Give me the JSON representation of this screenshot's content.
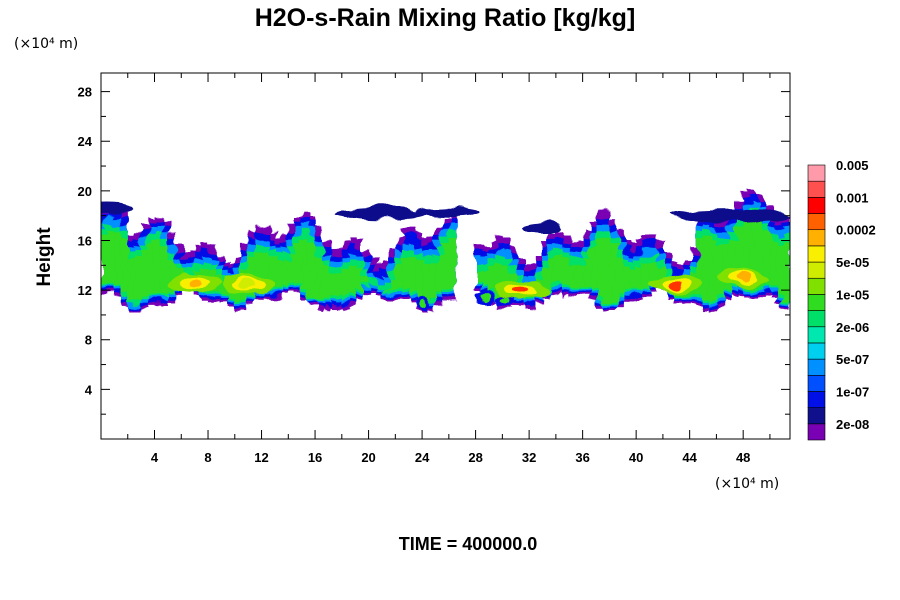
{
  "chart_data": {
    "type": "heatmap",
    "title": "H2O-s-Rain Mixing Ratio [kg/kg]",
    "xlabel": "",
    "ylabel": "Height",
    "x_unit": "(×10⁴ m)",
    "y_unit": "(×10⁴ m)",
    "xlim": [
      0,
      51.5
    ],
    "ylim": [
      0,
      29.5
    ],
    "x_ticks": [
      4,
      8,
      12,
      16,
      20,
      24,
      28,
      32,
      36,
      40,
      44,
      48
    ],
    "y_ticks": [
      4,
      8,
      12,
      16,
      20,
      24,
      28
    ],
    "x_tick_labels": [
      "4",
      "8",
      "12",
      "16",
      "20",
      "24",
      "28",
      "32",
      "36",
      "40",
      "44",
      "48"
    ],
    "y_tick_labels": [
      "4",
      "8",
      "12",
      "16",
      "20",
      "24",
      "28"
    ],
    "grid": false,
    "colorbar": {
      "colors": [
        "#7a00b4",
        "#10108c",
        "#0010e6",
        "#0050ff",
        "#0090ff",
        "#00d0f0",
        "#00e8b0",
        "#00e068",
        "#30dc20",
        "#80e000",
        "#d0ec00",
        "#f8f000",
        "#ffb000",
        "#ff6000",
        "#ff0000",
        "#ff5050",
        "#ff9aaa"
      ],
      "labels": [
        "2e-08",
        "1e-07",
        "5e-07",
        "2e-06",
        "1e-05",
        "5e-05",
        "0.0002",
        "0.001",
        "0.005"
      ]
    },
    "layer": {
      "x_range": [
        0,
        51.5
      ],
      "base_height_range": [
        11,
        12.5
      ],
      "top_height_range": [
        14.5,
        19.5
      ],
      "gap_x_ranges": [
        [
          26.5,
          28
        ]
      ],
      "peak_regions": [
        {
          "x": 7,
          "y": 12.5,
          "level": "0.0002"
        },
        {
          "x": 11,
          "y": 12.5,
          "level": "5e-05"
        },
        {
          "x": 31.5,
          "y": 12,
          "level": "0.001"
        },
        {
          "x": 43,
          "y": 12.5,
          "level": "0.001"
        },
        {
          "x": 48,
          "y": 13,
          "level": "0.0002"
        }
      ]
    }
  },
  "footer": {
    "time_label": "TIME = 400000.0"
  }
}
